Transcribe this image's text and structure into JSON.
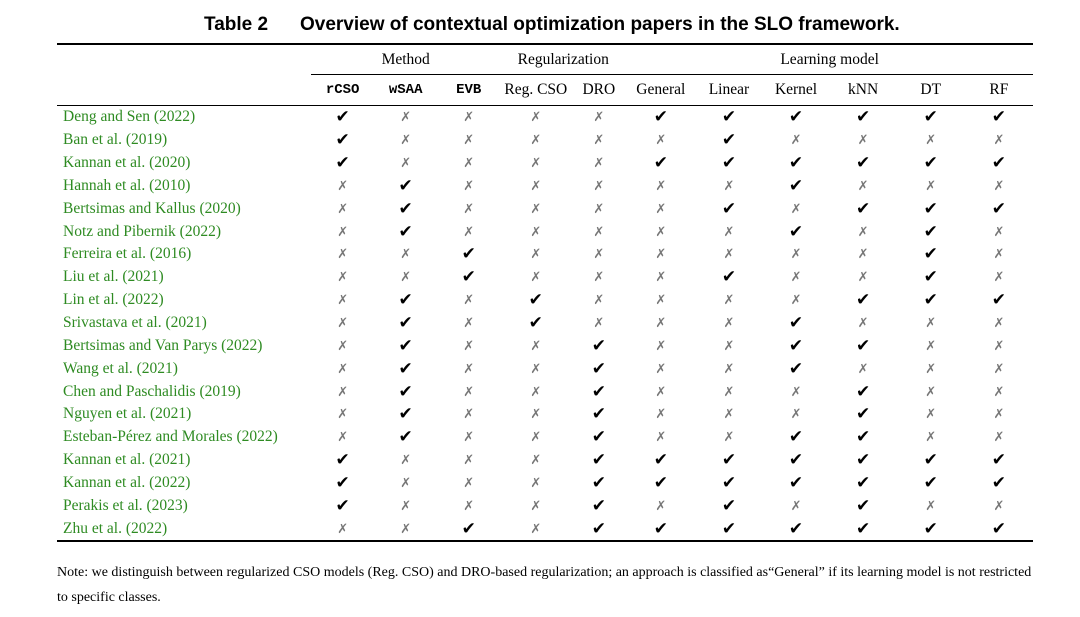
{
  "caption": {
    "label": "Table 2",
    "title": "Overview of contextual optimization papers in the SLO framework."
  },
  "groups": {
    "method": "Method",
    "regularization": "Regularization",
    "learning_model": "Learning model"
  },
  "columns": [
    "rCSO",
    "wSAA",
    "EVB",
    "Reg. CSO",
    "DRO",
    "General",
    "Linear",
    "Kernel",
    "kNN",
    "DT",
    "RF"
  ],
  "marks": {
    "yes": "✔",
    "no": "✗"
  },
  "rows": [
    {
      "author": "Deng and Sen (2022)",
      "values": [
        "yes",
        "no",
        "no",
        "no",
        "no",
        "yes",
        "yes",
        "yes",
        "yes",
        "yes",
        "yes"
      ]
    },
    {
      "author": "Ban et al. (2019)",
      "values": [
        "yes",
        "no",
        "no",
        "no",
        "no",
        "no",
        "yes",
        "no",
        "no",
        "no",
        "no"
      ]
    },
    {
      "author": "Kannan et al. (2020)",
      "values": [
        "yes",
        "no",
        "no",
        "no",
        "no",
        "yes",
        "yes",
        "yes",
        "yes",
        "yes",
        "yes"
      ]
    },
    {
      "author": "Hannah et al. (2010)",
      "values": [
        "no",
        "yes",
        "no",
        "no",
        "no",
        "no",
        "no",
        "yes",
        "no",
        "no",
        "no"
      ]
    },
    {
      "author": "Bertsimas and Kallus (2020)",
      "values": [
        "no",
        "yes",
        "no",
        "no",
        "no",
        "no",
        "yes",
        "no",
        "yes",
        "yes",
        "yes"
      ]
    },
    {
      "author": "Notz and Pibernik (2022)",
      "values": [
        "no",
        "yes",
        "no",
        "no",
        "no",
        "no",
        "no",
        "yes",
        "no",
        "yes",
        "no"
      ]
    },
    {
      "author": "Ferreira et al. (2016)",
      "values": [
        "no",
        "no",
        "yes",
        "no",
        "no",
        "no",
        "no",
        "no",
        "no",
        "yes",
        "no"
      ]
    },
    {
      "author": "Liu et al. (2021)",
      "values": [
        "no",
        "no",
        "yes",
        "no",
        "no",
        "no",
        "yes",
        "no",
        "no",
        "yes",
        "no"
      ]
    },
    {
      "author": "Lin et al. (2022)",
      "values": [
        "no",
        "yes",
        "no",
        "yes",
        "no",
        "no",
        "no",
        "no",
        "yes",
        "yes",
        "yes"
      ]
    },
    {
      "author": "Srivastava et al. (2021)",
      "values": [
        "no",
        "yes",
        "no",
        "yes",
        "no",
        "no",
        "no",
        "yes",
        "no",
        "no",
        "no"
      ]
    },
    {
      "author": "Bertsimas and Van Parys (2022)",
      "values": [
        "no",
        "yes",
        "no",
        "no",
        "yes",
        "no",
        "no",
        "yes",
        "yes",
        "no",
        "no"
      ]
    },
    {
      "author": "Wang et al. (2021)",
      "values": [
        "no",
        "yes",
        "no",
        "no",
        "yes",
        "no",
        "no",
        "yes",
        "no",
        "no",
        "no"
      ]
    },
    {
      "author": "Chen and Paschalidis (2019)",
      "values": [
        "no",
        "yes",
        "no",
        "no",
        "yes",
        "no",
        "no",
        "no",
        "yes",
        "no",
        "no"
      ]
    },
    {
      "author": "Nguyen et al. (2021)",
      "values": [
        "no",
        "yes",
        "no",
        "no",
        "yes",
        "no",
        "no",
        "no",
        "yes",
        "no",
        "no"
      ]
    },
    {
      "author": "Esteban-Pérez and Morales (2022)",
      "values": [
        "no",
        "yes",
        "no",
        "no",
        "yes",
        "no",
        "no",
        "yes",
        "yes",
        "no",
        "no"
      ]
    },
    {
      "author": "Kannan et al. (2021)",
      "values": [
        "yes",
        "no",
        "no",
        "no",
        "yes",
        "yes",
        "yes",
        "yes",
        "yes",
        "yes",
        "yes"
      ]
    },
    {
      "author": "Kannan et al. (2022)",
      "values": [
        "yes",
        "no",
        "no",
        "no",
        "yes",
        "yes",
        "yes",
        "yes",
        "yes",
        "yes",
        "yes"
      ]
    },
    {
      "author": "Perakis et al. (2023)",
      "values": [
        "yes",
        "no",
        "no",
        "no",
        "yes",
        "no",
        "yes",
        "no",
        "yes",
        "no",
        "no"
      ]
    },
    {
      "author": "Zhu et al. (2022)",
      "values": [
        "no",
        "no",
        "yes",
        "no",
        "yes",
        "yes",
        "yes",
        "yes",
        "yes",
        "yes",
        "yes"
      ]
    }
  ],
  "note": "Note: we distinguish between regularized CSO models (Reg. CSO) and DRO-based regularization; an approach is classified as“General” if its learning model is not restricted to specific classes."
}
